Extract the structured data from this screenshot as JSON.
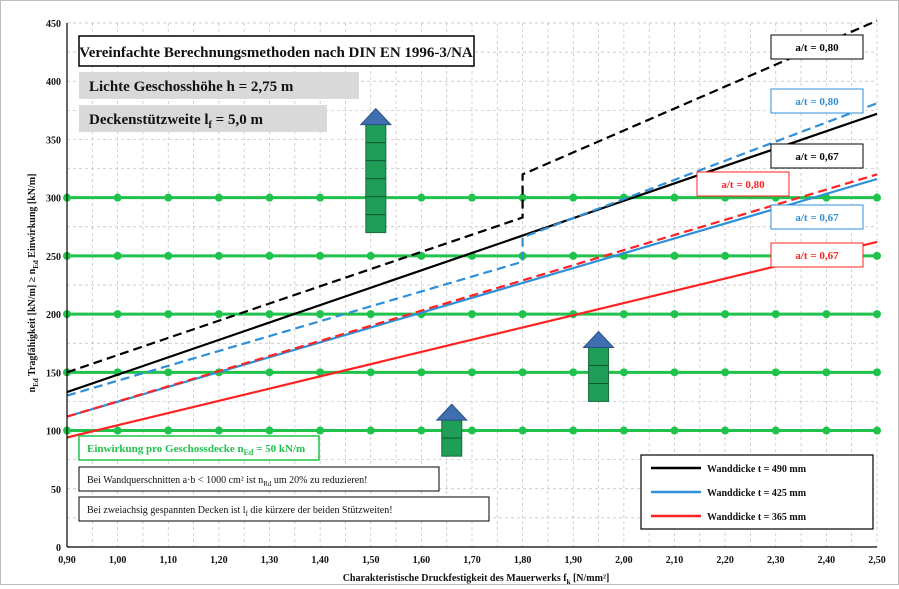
{
  "chart_data": {
    "type": "line",
    "xlabel": "Charakteristische Druckfestigkeit des Mauerwerks f",
    "xlabel_sub": "k",
    "xlabel_unit": " [N/mm²]",
    "ylabel_parts": [
      "n",
      "Ed",
      " Tragfähigkeit [kN/m] ≥ n",
      "Ed",
      " Einwirkung [kN/m]"
    ],
    "xlim": [
      0.9,
      2.5
    ],
    "ylim": [
      0,
      450
    ],
    "x_ticks": [
      "0,90",
      "1,00",
      "1,10",
      "1,20",
      "1,30",
      "1,40",
      "1,50",
      "1,60",
      "1,70",
      "1,80",
      "1,90",
      "2,00",
      "2,10",
      "2,20",
      "2,30",
      "2,40",
      "2,50"
    ],
    "y_ticks": [
      "0",
      "50",
      "100",
      "150",
      "200",
      "250",
      "300",
      "350",
      "400",
      "450"
    ],
    "grid": true,
    "reference_lines": [
      100,
      150,
      200,
      250,
      300
    ],
    "reference_color": "#1fc34b",
    "series": [
      {
        "name": "Wanddicke t = 490 mm",
        "style": "solid",
        "color": "#000000",
        "x": [
          0.9,
          2.5
        ],
        "y": [
          133,
          372
        ]
      },
      {
        "name": "",
        "style": "dashed",
        "color": "#000000",
        "x": [
          0.9,
          1.8,
          1.8,
          2.5
        ],
        "y": [
          150,
          283,
          320,
          452
        ]
      },
      {
        "name": "Wanddicke t = 425 mm",
        "style": "solid",
        "color": "#2f8fd8",
        "x": [
          0.9,
          2.5
        ],
        "y": [
          112,
          316
        ]
      },
      {
        "name": "",
        "style": "dashed",
        "color": "#2f8fd8",
        "x": [
          0.9,
          1.8,
          1.8,
          2.5
        ],
        "y": [
          130,
          245,
          266,
          381
        ]
      },
      {
        "name": "Wanddicke t = 365 mm",
        "style": "solid",
        "color": "#ff2222",
        "x": [
          0.9,
          2.5
        ],
        "y": [
          94,
          262
        ]
      },
      {
        "name": "",
        "style": "dashed",
        "color": "#ff2222",
        "x": [
          0.9,
          2.5
        ],
        "y": [
          112,
          320
        ]
      }
    ],
    "line_labels": [
      {
        "text": "a/t = 0,80",
        "color": "#000000"
      },
      {
        "text": "a/t = 0,80",
        "color": "#2f8fd8"
      },
      {
        "text": "a/t = 0,67",
        "color": "#000000"
      },
      {
        "text": "a/t = 0,80",
        "color": "#ff2222"
      },
      {
        "text": "a/t = 0,67",
        "color": "#2f8fd8"
      },
      {
        "text": "a/t = 0,67",
        "color": "#ff2222"
      }
    ],
    "title": "Vereinfachte Berechnungsmethoden nach DIN EN 1996-3/NA",
    "annotations": {
      "height_label": "Lichte Geschosshöhe h = 2,75 m",
      "span_label_main": "Deckenstützweite l",
      "span_label_sub": "f",
      "span_label_tail": " = 5,0 m",
      "load_main": "Einwirkung pro Geschossdecke n",
      "load_sub": "Ed",
      "load_tail": " = 50 kN/m",
      "note1_main": "Bei Wandquerschnitten a·b < 1000 cm² ist n",
      "note1_sub": "Rd",
      "note1_tail": " um 20% zu reduzieren!",
      "note2_main": "Bei zweiachsig gespannten Decken ist l",
      "note2_sub": "f",
      "note2_tail": "  die kürzere der beiden Stützweiten!"
    },
    "arrows": [
      {
        "x": 1.51,
        "y_base": 270,
        "stories": 6
      },
      {
        "x": 1.95,
        "y_base": 125,
        "stories": 3
      },
      {
        "x": 1.66,
        "y_base": 78,
        "stories": 2
      }
    ],
    "arrow_color": "#1e9e57"
  }
}
